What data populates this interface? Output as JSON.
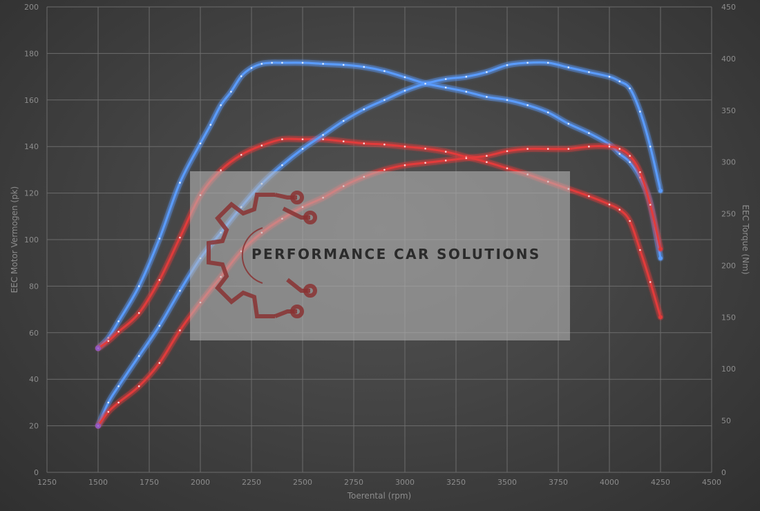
{
  "chart_data": {
    "type": "line",
    "xlabel": "Toerental (rpm)",
    "ylabel_left": "EEC Motor Vermogen (pk)",
    "ylabel_right": "EEC Torque (Nm)",
    "xlim": [
      1250,
      4500
    ],
    "ylim_left": [
      0,
      200
    ],
    "ylim_right": [
      0,
      450
    ],
    "x_ticks": [
      "1250",
      "1500",
      "1750",
      "2000",
      "2250",
      "2500",
      "2750",
      "3000",
      "3250",
      "3500",
      "3750",
      "4000",
      "4250",
      "4500"
    ],
    "y_left_ticks": [
      "0",
      "20",
      "40",
      "60",
      "80",
      "100",
      "120",
      "140",
      "160",
      "180",
      "200"
    ],
    "y_right_ticks": [
      "0",
      "50",
      "100",
      "150",
      "200",
      "250",
      "300",
      "350",
      "400",
      "450"
    ],
    "grid": true,
    "series": [
      {
        "color": "#5a9cff",
        "axis": "right",
        "x": [
          1500,
          1550,
          1600,
          1700,
          1800,
          1900,
          2000,
          2050,
          2100,
          2150,
          2200,
          2250,
          2300,
          2350,
          2400,
          2500,
          2600,
          2700,
          2800,
          2900,
          3000,
          3100,
          3200,
          3300,
          3400,
          3500,
          3600,
          3700,
          3800,
          3900,
          4000,
          4050,
          4100,
          4150,
          4200,
          4250
        ],
        "values": [
          120,
          130,
          146,
          180,
          226,
          280,
          318,
          336,
          355,
          368,
          383,
          391,
          395,
          396,
          396,
          396,
          395,
          394,
          392,
          388,
          382,
          376,
          372,
          368,
          363,
          360,
          355,
          348,
          337,
          328,
          317,
          308,
          300,
          285,
          260,
          207
        ]
      },
      {
        "color": "#e23a3a",
        "axis": "right",
        "x": [
          1500,
          1550,
          1600,
          1700,
          1800,
          1900,
          2000,
          2100,
          2200,
          2300,
          2400,
          2500,
          2600,
          2700,
          2800,
          2900,
          3000,
          3100,
          3200,
          3300,
          3400,
          3500,
          3600,
          3700,
          3800,
          3900,
          4000,
          4050,
          4100,
          4150,
          4200,
          4250
        ],
        "values": [
          120,
          127,
          136,
          154,
          186,
          227,
          268,
          292,
          307,
          316,
          322,
          322,
          322,
          320,
          318,
          317,
          315,
          313,
          310,
          305,
          300,
          294,
          288,
          281,
          274,
          267,
          259,
          254,
          243,
          215,
          184,
          150
        ]
      },
      {
        "color": "#5a9cff",
        "axis": "left",
        "x": [
          1500,
          1550,
          1600,
          1700,
          1800,
          1900,
          2000,
          2100,
          2200,
          2300,
          2400,
          2500,
          2600,
          2700,
          2800,
          2900,
          3000,
          3100,
          3200,
          3300,
          3400,
          3500,
          3600,
          3700,
          3800,
          3900,
          4000,
          4050,
          4100,
          4150,
          4200,
          4250
        ],
        "values": [
          20,
          30,
          37,
          50,
          63,
          78,
          92,
          103,
          114,
          124,
          132,
          139,
          145,
          151,
          156,
          160,
          164,
          167,
          169,
          170,
          172,
          175,
          176,
          176,
          174,
          172,
          170,
          168,
          165,
          155,
          140,
          121
        ]
      },
      {
        "color": "#e23a3a",
        "axis": "left",
        "x": [
          1500,
          1550,
          1600,
          1700,
          1800,
          1900,
          2000,
          2100,
          2200,
          2300,
          2400,
          2500,
          2600,
          2700,
          2800,
          2900,
          3000,
          3100,
          3200,
          3300,
          3400,
          3500,
          3600,
          3700,
          3800,
          3900,
          4000,
          4050,
          4100,
          4150,
          4200,
          4250
        ],
        "values": [
          20,
          26,
          30,
          37,
          47,
          61,
          73,
          84,
          95,
          103,
          109,
          114,
          118,
          123,
          127,
          130,
          132,
          133,
          134,
          135,
          136,
          138,
          139,
          139,
          139,
          140,
          140,
          139,
          136,
          129,
          115,
          96
        ]
      }
    ]
  },
  "watermark": {
    "text": "PERFORMANCE CAR SOLUTIONS",
    "color": "#8a3232"
  }
}
